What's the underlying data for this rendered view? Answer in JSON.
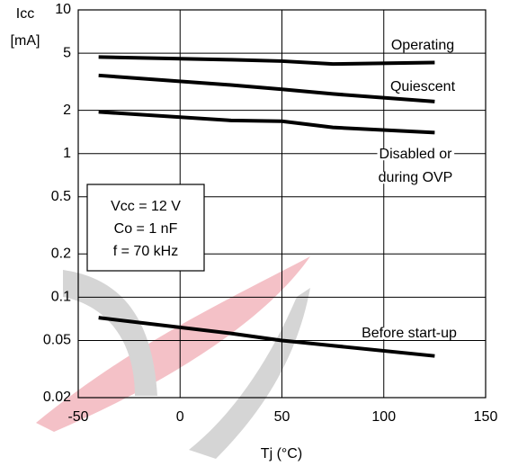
{
  "chart_data": {
    "type": "line",
    "ylabel": "Icc",
    "yunit": "[mA]",
    "xlabel": "Tj  (°C)",
    "x": [
      -40,
      25,
      50,
      75,
      125
    ],
    "series": [
      {
        "color": "#000000",
        "values": [
          4.7,
          4.5,
          4.4,
          4.2,
          4.3
        ]
      },
      {
        "color": "#000000",
        "values": [
          3.5,
          3.0,
          2.8,
          2.6,
          2.3
        ]
      },
      {
        "color": "#000000",
        "values": [
          1.95,
          1.7,
          1.68,
          1.52,
          1.4
        ]
      },
      {
        "color": "#000000",
        "values": [
          0.072,
          0.056,
          0.05,
          0.046,
          0.039
        ]
      }
    ],
    "annotations": [
      "Operating",
      "Quiescent",
      "Disabled or",
      "during OVP",
      "Before start-up"
    ],
    "conditions": [
      "Vcc = 12 V",
      "Co = 1 nF",
      "f = 70 kHz"
    ],
    "xlim": [
      -50,
      150
    ],
    "xticks": [
      -50,
      0,
      50,
      100,
      150
    ],
    "ylim": [
      0.02,
      10
    ],
    "yticks": [
      0.02,
      0.05,
      0.1,
      0.2,
      0.5,
      1,
      2,
      5,
      10
    ],
    "log_y": true,
    "grid": true
  }
}
